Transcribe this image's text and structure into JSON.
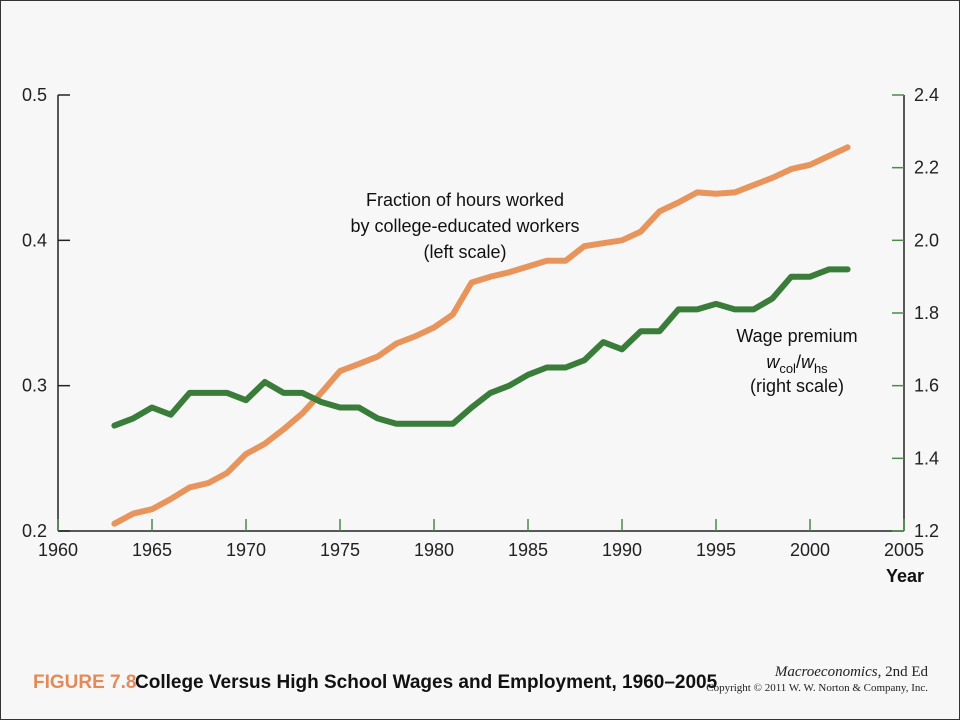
{
  "chart_data": {
    "type": "line",
    "xlabel": "Year",
    "x_ticks": [
      "1960",
      "1965",
      "1970",
      "1975",
      "1980",
      "1985",
      "1990",
      "1995",
      "2000",
      "2005"
    ],
    "xlim": [
      1960,
      2005
    ],
    "left_axis": {
      "ylim": [
        0.2,
        0.5
      ],
      "ticks": [
        "0.2",
        "0.3",
        "0.4",
        "0.5"
      ]
    },
    "right_axis": {
      "ylim": [
        1.2,
        2.4
      ],
      "ticks": [
        "1.2",
        "1.4",
        "1.6",
        "1.8",
        "2.0",
        "2.2",
        "2.4"
      ]
    },
    "grid": false,
    "series": [
      {
        "name": "Fraction of hours worked by college-educated workers",
        "axis": "left",
        "color": "#e8955d",
        "annotation": [
          "Fraction of hours worked",
          "by college-educated workers",
          "(left scale)"
        ],
        "x": [
          1963,
          1964,
          1965,
          1966,
          1967,
          1968,
          1969,
          1970,
          1971,
          1972,
          1973,
          1974,
          1975,
          1976,
          1977,
          1978,
          1979,
          1980,
          1981,
          1982,
          1983,
          1984,
          1985,
          1986,
          1987,
          1988,
          1989,
          1990,
          1991,
          1992,
          1993,
          1994,
          1995,
          1996,
          1997,
          1998,
          1999,
          2000,
          2001,
          2002
        ],
        "values": [
          0.205,
          0.212,
          0.215,
          0.222,
          0.23,
          0.233,
          0.24,
          0.253,
          0.26,
          0.27,
          0.281,
          0.295,
          0.31,
          0.315,
          0.32,
          0.329,
          0.334,
          0.34,
          0.349,
          0.371,
          0.375,
          0.378,
          0.382,
          0.386,
          0.386,
          0.396,
          0.398,
          0.4,
          0.406,
          0.42,
          0.426,
          0.433,
          0.432,
          0.433,
          0.438,
          0.443,
          0.449,
          0.452,
          0.458,
          0.464
        ]
      },
      {
        "name": "Wage premium w_col/w_hs",
        "axis": "right",
        "color": "#3a7d3a",
        "annotation": [
          "Wage premium",
          "(right scale)"
        ],
        "x": [
          1963,
          1964,
          1965,
          1966,
          1967,
          1968,
          1969,
          1970,
          1971,
          1972,
          1973,
          1974,
          1975,
          1976,
          1977,
          1978,
          1979,
          1980,
          1981,
          1982,
          1983,
          1984,
          1985,
          1986,
          1987,
          1988,
          1989,
          1990,
          1991,
          1992,
          1993,
          1994,
          1995,
          1996,
          1997,
          1998,
          1999,
          2000,
          2001,
          2002
        ],
        "values": [
          1.49,
          1.51,
          1.54,
          1.52,
          1.58,
          1.58,
          1.58,
          1.56,
          1.61,
          1.58,
          1.58,
          1.555,
          1.54,
          1.54,
          1.51,
          1.495,
          1.495,
          1.495,
          1.495,
          1.54,
          1.58,
          1.6,
          1.63,
          1.65,
          1.65,
          1.67,
          1.72,
          1.7,
          1.75,
          1.75,
          1.81,
          1.81,
          1.825,
          1.81,
          1.81,
          1.84,
          1.9,
          1.9,
          1.92,
          1.92
        ]
      }
    ]
  },
  "wage_formula": {
    "w": "w",
    "col": "col",
    "slash": "/",
    "hs": "hs"
  },
  "caption": {
    "figure_number": "FIGURE 7.8",
    "title": "College Versus High School Wages and Employment, 1960–2005",
    "book": "Macroeconomics",
    "edition": ", 2nd Ed",
    "copyright": "Copyright © 2011 W. W. Norton & Company, Inc."
  }
}
